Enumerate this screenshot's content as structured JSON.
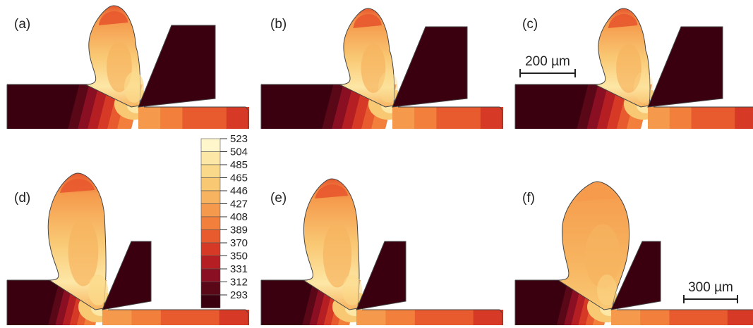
{
  "panels": [
    {
      "label": "(a)"
    },
    {
      "label": "(b)"
    },
    {
      "label": "(c)"
    },
    {
      "label": "(d)"
    },
    {
      "label": "(e)"
    },
    {
      "label": "(f)"
    }
  ],
  "scale_bars": {
    "top": "200 µm",
    "bottom": "300 µm"
  },
  "colorbar": {
    "ticks": [
      "523",
      "504",
      "485",
      "465",
      "446",
      "427",
      "408",
      "389",
      "370",
      "350",
      "331",
      "312",
      "293"
    ],
    "colors": [
      "#fff6cc",
      "#fde7a6",
      "#fbd98a",
      "#f9c873",
      "#f7b35f",
      "#f59a4c",
      "#f27f3c",
      "#e85b2f",
      "#d63a26",
      "#b51f24",
      "#8a0f22",
      "#5a0818",
      "#3a000f"
    ]
  },
  "colors": {
    "substrate_dark": "#3a000f",
    "tool": "#3b0010",
    "outline": "#444444"
  }
}
